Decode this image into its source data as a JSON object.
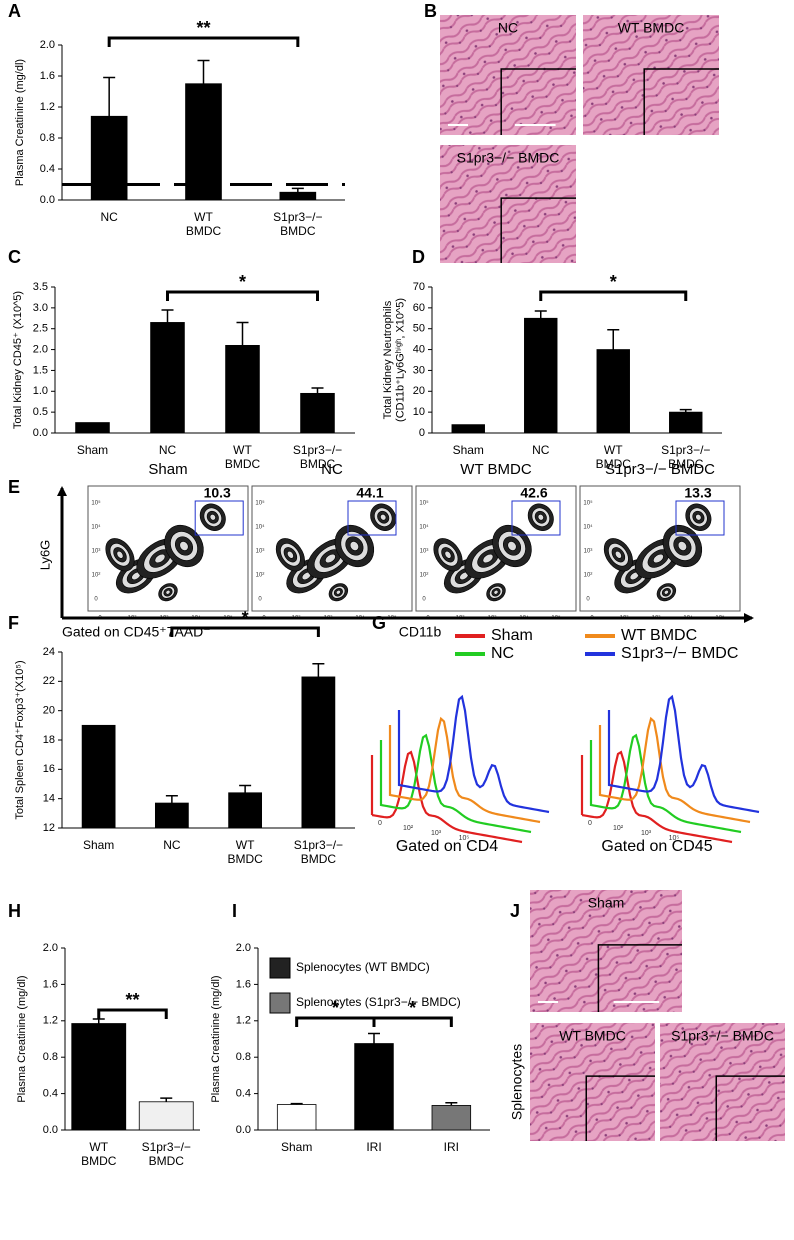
{
  "panels": [
    "A",
    "B",
    "C",
    "D",
    "E",
    "F",
    "G",
    "H",
    "I",
    "J"
  ],
  "chart_data": [
    {
      "type": "bar",
      "ylabel": "Plasma Creatinine (mg/dl)",
      "categories": [
        "NC",
        "WT\nBMDC",
        "S1pr3−/−\nBMDC"
      ],
      "values": [
        1.08,
        1.5,
        0.1
      ],
      "errors": [
        0.5,
        0.3,
        0.05
      ],
      "color": "#000000",
      "ylim": [
        0,
        2.0
      ],
      "yticks": [
        {
          "value": 0,
          "label": "0.0"
        },
        0.4,
        0.8,
        1.2,
        1.6,
        {
          "value": 2,
          "label": "2.0"
        }
      ],
      "reference_line": 0.2,
      "annotations": [
        "**"
      ]
    },
    {
      "type": "bar",
      "ylabel": "Total Kidney CD45⁺ (X10^5)",
      "categories": [
        "Sham",
        "NC",
        "WT\nBMDC",
        "S1pr3−/−\nBMDC"
      ],
      "values": [
        0.25,
        2.65,
        2.1,
        0.95
      ],
      "errors": [
        0,
        0.3,
        0.55,
        0.13
      ],
      "color": "#000000",
      "ylim": [
        0,
        3.5
      ],
      "yticks": [
        {
          "value": 0,
          "label": "0.0"
        },
        0.5,
        {
          "value": 1,
          "label": "1.0"
        },
        1.5,
        {
          "value": 2,
          "label": "2.0"
        },
        2.5,
        {
          "value": 3,
          "label": "3.0"
        },
        3.5
      ],
      "annotations": [
        "*"
      ]
    },
    {
      "type": "bar",
      "ylabel": "Total Kidney Neutrophils\n(CD11b⁺Ly6Gʰⁱᵍʰ, X10^5)",
      "categories": [
        "Sham",
        "NC",
        "WT\nBMDC",
        "S1pr3−/−\nBMDC"
      ],
      "values": [
        4,
        55,
        40,
        10
      ],
      "errors": [
        0,
        3.5,
        9.5,
        1.2
      ],
      "color": "#000000",
      "ylim": [
        0,
        70
      ],
      "yticks": [
        0,
        10,
        20,
        30,
        40,
        50,
        60,
        70
      ],
      "annotations": [
        "*"
      ]
    },
    {
      "type": "bar",
      "ylabel": "Total Spleen CD4⁺Foxp3⁺(X10⁵)",
      "categories": [
        "Sham",
        "NC",
        "WT\nBMDC",
        "S1pr3−/−\nBMDC"
      ],
      "values": [
        19,
        13.7,
        14.4,
        22.3
      ],
      "errors": [
        0,
        0.5,
        0.5,
        0.9
      ],
      "color": "#000000",
      "ylim": [
        12,
        24
      ],
      "yticks": [
        12,
        14,
        16,
        18,
        20,
        22,
        24
      ],
      "annotations": [
        "*"
      ]
    },
    {
      "type": "bar",
      "ylabel": "Plasma Creatinine (mg/dl)",
      "categories": [
        "WT\nBMDC",
        "S1pr3−/−\nBMDC"
      ],
      "values": [
        1.17,
        0.31
      ],
      "errors": [
        0.05,
        0.04
      ],
      "colors": [
        "#000000",
        "#f0f0f0"
      ],
      "ylim": [
        0,
        2.0
      ],
      "yticks": [
        {
          "value": 0,
          "label": "0.0"
        },
        0.4,
        0.8,
        1.2,
        1.6,
        {
          "value": 2,
          "label": "2.0"
        }
      ],
      "annotations": [
        "**"
      ]
    },
    {
      "type": "bar",
      "ylabel": "Plasma Creatinine (mg/dl)",
      "categories": [
        "Sham",
        "IRI",
        "IRI"
      ],
      "values": [
        0.28,
        0.95,
        0.27
      ],
      "errors": [
        0.01,
        0.11,
        0.03
      ],
      "colors": [
        "#ffffff",
        "#000000",
        "#777777"
      ],
      "ylim": [
        0,
        2.0
      ],
      "yticks": [
        {
          "value": 0,
          "label": "0.0"
        },
        0.4,
        0.8,
        1.2,
        1.6,
        {
          "value": 2,
          "label": "2.0"
        }
      ],
      "legend": [
        {
          "name": "Splenocytes (WT BMDC)",
          "color": "#222222"
        },
        {
          "name": "Splenocytes (S1pr3−/− BMDC)",
          "color": "#777777"
        }
      ],
      "annotations": [
        "*",
        "*"
      ]
    }
  ],
  "histology": {
    "B": [
      "NC",
      "WT BMDC",
      "S1pr3−/− BMDC"
    ],
    "J": [
      "Sham",
      "WT BMDC",
      "S1pr3−/− BMDC"
    ],
    "J_side_label": "Splenocytes"
  },
  "flow_cytometry": {
    "plots": [
      {
        "title": "Sham",
        "gate": 10.3
      },
      {
        "title": "NC",
        "gate": 44.1
      },
      {
        "title": "WT BMDC",
        "gate": 42.6
      },
      {
        "title": "S1pr3−/− BMDC",
        "gate": 13.3
      }
    ],
    "axis_ticks": [
      "0",
      "10²",
      "10³",
      "10⁴",
      "10⁵"
    ],
    "y_label": "Ly6G",
    "x_label": "CD11b",
    "gating": "Gated on CD45⁺7AAD⁻"
  },
  "histograms": {
    "legend": [
      {
        "name": "Sham",
        "color": "#e02020"
      },
      {
        "name": "WT BMDC",
        "color": "#f08a1c"
      },
      {
        "name": "NC",
        "color": "#22cc22"
      },
      {
        "name": "S1pr3−/− BMDC",
        "color": "#2233dd"
      }
    ],
    "axis_ticks": [
      "0",
      "10²",
      "10³",
      "10⁵"
    ],
    "gating": [
      "Gated on CD4",
      "Gated on CD45"
    ]
  }
}
